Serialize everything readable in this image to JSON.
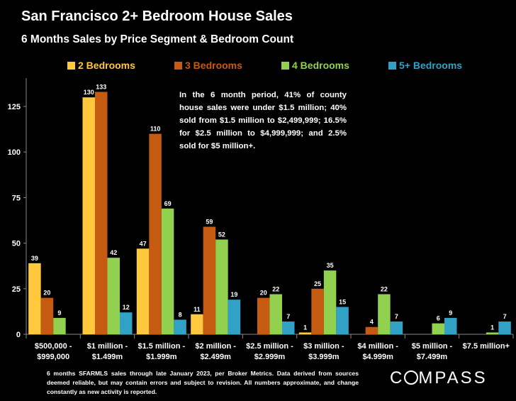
{
  "title": "San Francisco 2+ Bedroom House Sales",
  "subtitle": "6 Months Sales by Price Segment & Bedroom Count",
  "annotation": "In the 6 month period, 41% of county house sales were under $1.5 million; 40% sold from $1.5 million to $2,499,999; 16.5% for $2.5 million to $4,999,999; and 2.5% sold for $5 million+.",
  "footnote": "6 months SFARMLS sales through late January 2023, per Broker Metrics. Data derived from sources deemed reliable, but may contain errors and subject to revision. All numbers approximate, and change constantly as new activity is reported.",
  "logo": "COMPASS",
  "chart_data": {
    "type": "bar",
    "categories": [
      [
        "$500,000 -",
        "$999,000"
      ],
      [
        "$1 million -",
        "$1.499m"
      ],
      [
        "$1.5 million -",
        "$1.999m"
      ],
      [
        "$2 million -",
        "$2.499m"
      ],
      [
        "$2.5 million -",
        "$2.999m"
      ],
      [
        "$3 million -",
        "$3.999m"
      ],
      [
        "$4 million -",
        "$4.999m"
      ],
      [
        "$5 million -",
        "$7.499m"
      ],
      [
        "$7.5 million+"
      ]
    ],
    "series": [
      {
        "name": "2 Bedrooms",
        "color": "#FFC83D",
        "values": [
          39,
          130,
          47,
          11,
          null,
          1,
          null,
          null,
          null
        ]
      },
      {
        "name": "3 Bedrooms",
        "color": "#C55A11",
        "values": [
          20,
          133,
          110,
          59,
          20,
          25,
          4,
          null,
          null
        ]
      },
      {
        "name": "4 Bedrooms",
        "color": "#92D050",
        "values": [
          9,
          42,
          69,
          52,
          22,
          35,
          22,
          6,
          1
        ]
      },
      {
        "name": "5+ Bedrooms",
        "color": "#31A2C6",
        "values": [
          null,
          12,
          8,
          19,
          7,
          15,
          7,
          9,
          7
        ]
      }
    ],
    "yticks": [
      0,
      25,
      50,
      75,
      100,
      125
    ],
    "ylim": [
      0,
      135
    ],
    "grid": false,
    "legend": "top"
  }
}
